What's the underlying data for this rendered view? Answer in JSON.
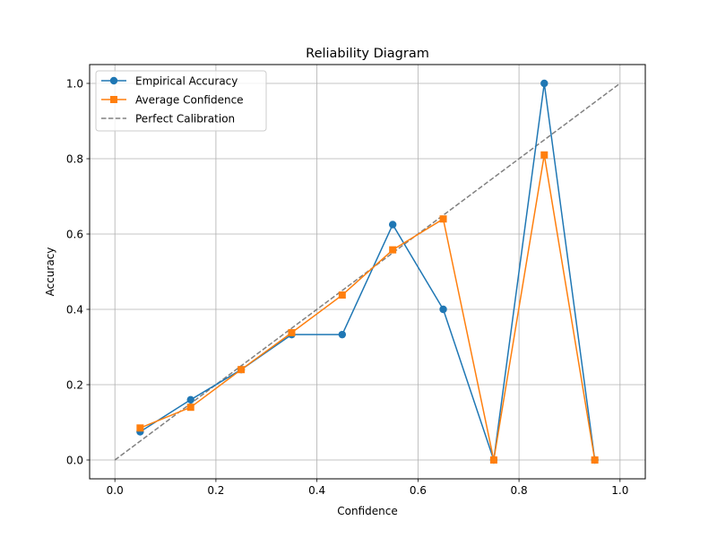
{
  "chart_data": {
    "type": "line",
    "title": "Reliability Diagram",
    "xlabel": "Confidence",
    "ylabel": "Accuracy",
    "xlim": [
      -0.05,
      1.05
    ],
    "ylim": [
      -0.05,
      1.05
    ],
    "x_ticks": [
      0.0,
      0.2,
      0.4,
      0.6,
      0.8,
      1.0
    ],
    "x_tick_labels": [
      "0.0",
      "0.2",
      "0.4",
      "0.6",
      "0.8",
      "1.0"
    ],
    "y_ticks": [
      0.0,
      0.2,
      0.4,
      0.6,
      0.8,
      1.0
    ],
    "y_tick_labels": [
      "0.0",
      "0.2",
      "0.4",
      "0.6",
      "0.8",
      "1.0"
    ],
    "grid": true,
    "legend_position": "top-left",
    "series": [
      {
        "name": "Empirical Accuracy",
        "color": "#1f77b4",
        "marker": "circle",
        "x": [
          0.05,
          0.15,
          0.25,
          0.35,
          0.45,
          0.55,
          0.65,
          0.75,
          0.85,
          0.95
        ],
        "y": [
          0.075,
          0.16,
          0.24,
          0.333,
          0.333,
          0.625,
          0.4,
          0.0,
          1.0,
          0.0
        ]
      },
      {
        "name": "Average Confidence",
        "color": "#ff7f0e",
        "marker": "square",
        "x": [
          0.05,
          0.15,
          0.25,
          0.35,
          0.45,
          0.55,
          0.65,
          0.75,
          0.85,
          0.95
        ],
        "y": [
          0.085,
          0.14,
          0.24,
          0.338,
          0.438,
          0.558,
          0.64,
          0.0,
          0.81,
          0.0
        ]
      },
      {
        "name": "Perfect Calibration",
        "color": "#808080",
        "marker": "none",
        "dashed": true,
        "x": [
          0.0,
          1.0
        ],
        "y": [
          0.0,
          1.0
        ]
      }
    ]
  }
}
